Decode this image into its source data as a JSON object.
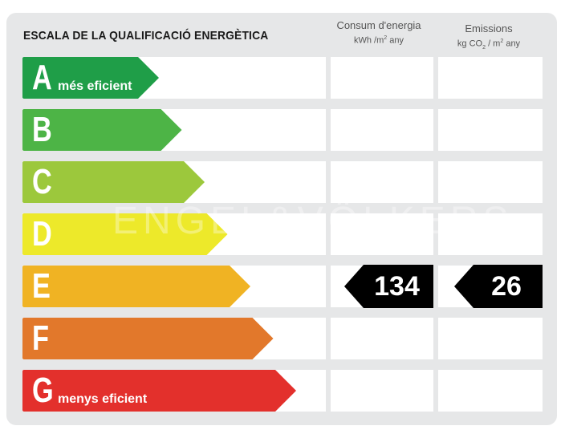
{
  "title": "ESCALA DE LA QUALIFICACIÓ ENERGÈTICA",
  "columns": {
    "consumption": {
      "label": "Consum d'energia",
      "unit_main": "kWh /m",
      "unit_sup": "2",
      "unit_tail": " any"
    },
    "emissions": {
      "label": "Emissions",
      "unit_main": "kg CO",
      "unit_sub": "2",
      "unit_mid": " / m",
      "unit_sup": "2",
      "unit_tail": " any"
    }
  },
  "ratings": [
    {
      "letter": "A",
      "color": "#1f9e48",
      "note": "més eficient"
    },
    {
      "letter": "B",
      "color": "#4db446",
      "note": ""
    },
    {
      "letter": "C",
      "color": "#9cc83c",
      "note": ""
    },
    {
      "letter": "D",
      "color": "#ede92a",
      "note": ""
    },
    {
      "letter": "E",
      "color": "#f0b323",
      "note": ""
    },
    {
      "letter": "F",
      "color": "#e2782b",
      "note": ""
    },
    {
      "letter": "G",
      "color": "#e3302c",
      "note": "menys eficient"
    }
  ],
  "result": {
    "rating_letter": "E",
    "consumption_value": "134",
    "emissions_value": "26",
    "marker_color": "#000000"
  },
  "watermark": "ENGEL&VÖLKERS"
}
